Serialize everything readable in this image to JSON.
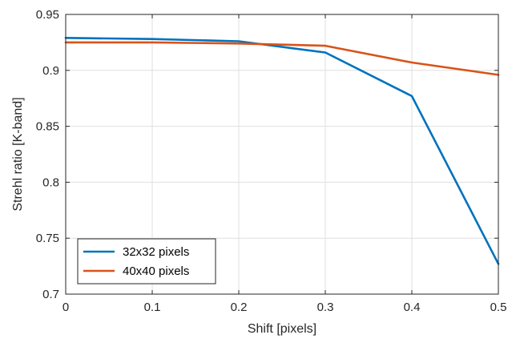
{
  "chart_data": {
    "type": "line",
    "title": "",
    "xlabel": "Shift [pixels]",
    "ylabel": "Strehl ratio [K-band]",
    "xlim": [
      0,
      0.5
    ],
    "ylim": [
      0.7,
      0.95
    ],
    "grid": true,
    "legend_position": "bottom-left",
    "x_ticks": [
      "0",
      "0.1",
      "0.2",
      "0.3",
      "0.4",
      "0.5"
    ],
    "y_ticks": [
      "0.7",
      "0.75",
      "0.8",
      "0.85",
      "0.9",
      "0.95"
    ],
    "x": [
      0,
      0.1,
      0.2,
      0.3,
      0.4,
      0.5
    ],
    "series": [
      {
        "name": "32x32 pixels",
        "color": "#0072BD",
        "values": [
          0.929,
          0.928,
          0.926,
          0.916,
          0.877,
          0.727
        ]
      },
      {
        "name": "40x40 pixels",
        "color": "#D95319",
        "values": [
          0.925,
          0.925,
          0.924,
          0.922,
          0.907,
          0.896
        ]
      }
    ]
  }
}
